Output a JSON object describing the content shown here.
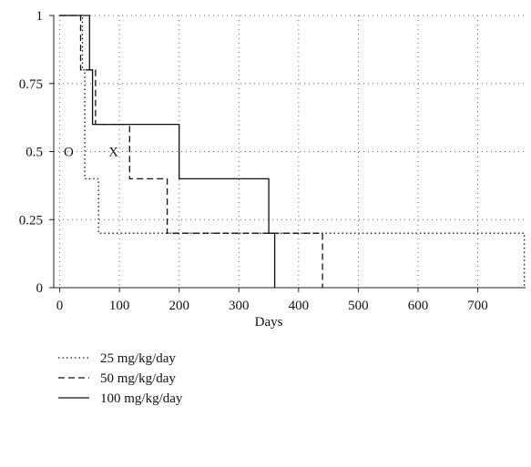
{
  "chart_data": {
    "type": "line",
    "step": true,
    "xlabel": "Days",
    "ylabel": "",
    "xlim": [
      -10,
      780
    ],
    "ylim": [
      0,
      1
    ],
    "x_ticks": [
      0,
      100,
      200,
      300,
      400,
      500,
      600,
      700
    ],
    "y_ticks": [
      0,
      0.25,
      0.5,
      0.75,
      1
    ],
    "y_tick_labels": [
      "0",
      "0.25",
      "0.5",
      "0.75",
      "1"
    ],
    "grid": "dotted",
    "legend_position": "bottom-left",
    "series": [
      {
        "name": "25 mg/kg/day",
        "dash": "dotted",
        "x": [
          0,
          38,
          38,
          42,
          42,
          65,
          65,
          778,
          778
        ],
        "y": [
          1,
          1,
          0.8,
          0.8,
          0.4,
          0.4,
          0.2,
          0.2,
          0
        ]
      },
      {
        "name": "50 mg/kg/day",
        "dash": "dashed",
        "x": [
          0,
          35,
          35,
          60,
          60,
          117,
          117,
          180,
          180,
          440,
          440
        ],
        "y": [
          1,
          1,
          0.8,
          0.8,
          0.6,
          0.6,
          0.4,
          0.4,
          0.2,
          0.2,
          0
        ]
      },
      {
        "name": "100 mg/kg/day",
        "dash": "solid",
        "x": [
          0,
          50,
          50,
          55,
          55,
          200,
          200,
          350,
          350,
          360,
          360
        ],
        "y": [
          1,
          1,
          0.8,
          0.8,
          0.6,
          0.6,
          0.4,
          0.4,
          0.2,
          0.2,
          0
        ]
      }
    ],
    "annotations": [
      {
        "text": "O",
        "x": 15,
        "y": 0.5
      },
      {
        "text": "X",
        "x": 90,
        "y": 0.5
      }
    ]
  }
}
